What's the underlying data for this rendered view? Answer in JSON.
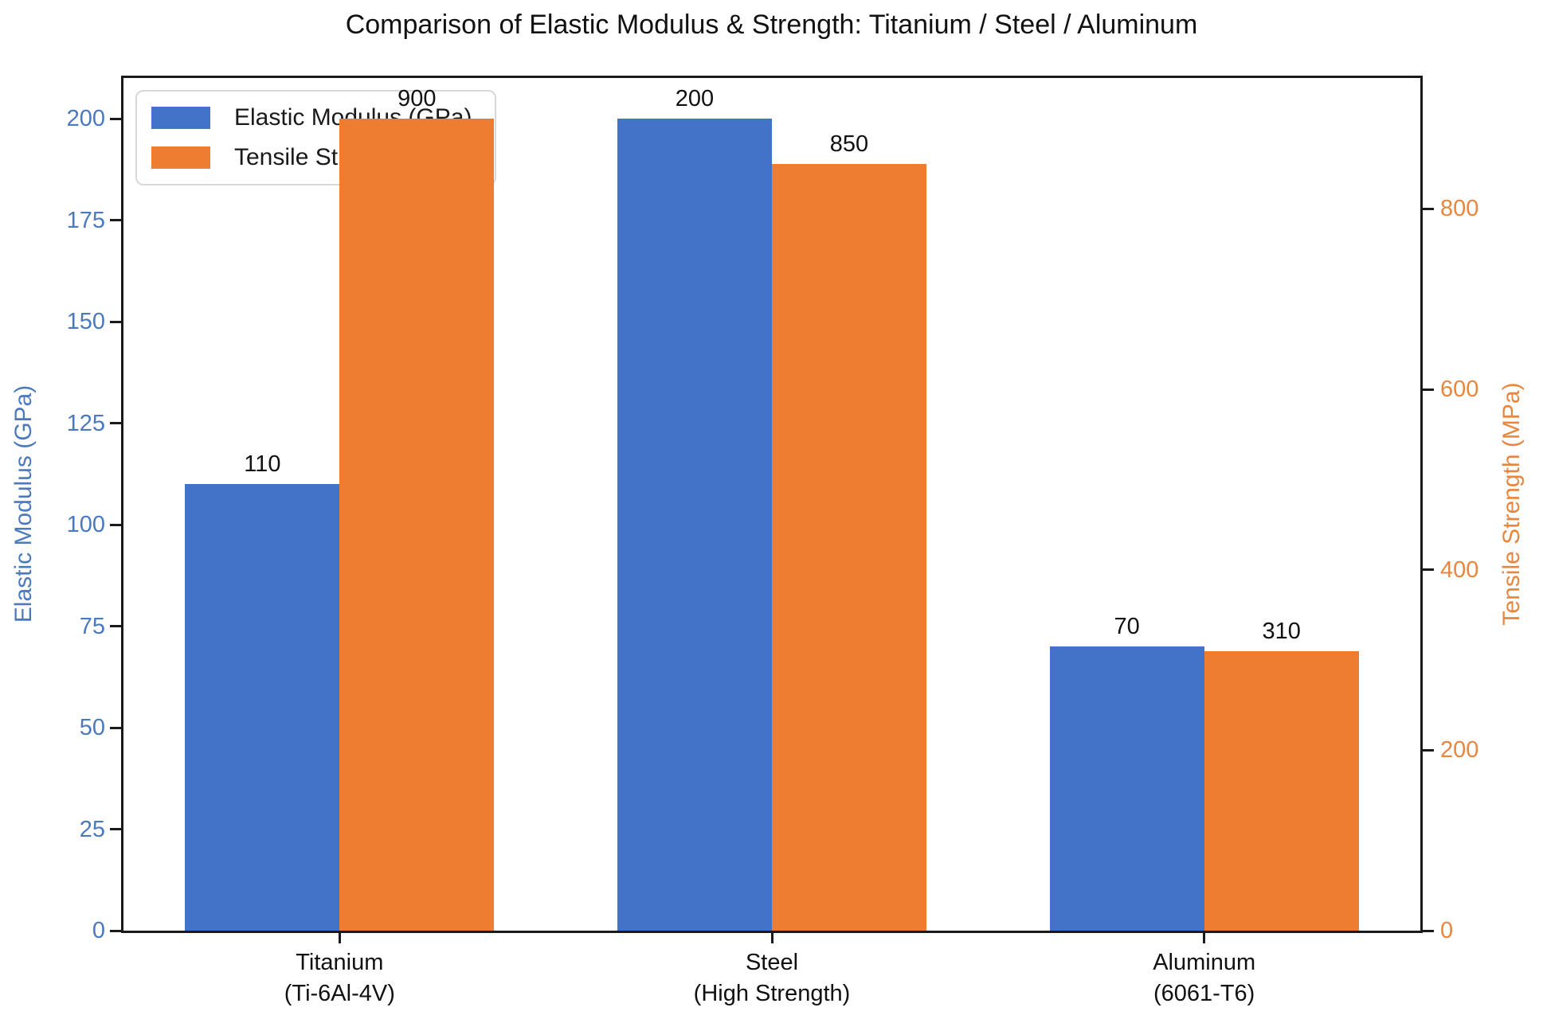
{
  "chart_data": {
    "type": "bar",
    "title": "Comparison of Elastic Modulus & Strength: Titanium / Steel / Aluminum",
    "categories": [
      {
        "name": "Titanium",
        "detail": "(Ti-6Al-4V)"
      },
      {
        "name": "Steel",
        "detail": "(High Strength)"
      },
      {
        "name": "Aluminum",
        "detail": "(6061-T6)"
      }
    ],
    "series": [
      {
        "key": "elastic-modulus",
        "name": "Elastic Modulus (GPa)",
        "axis": "left",
        "color": "#4173C9",
        "values": [
          110,
          200,
          70
        ]
      },
      {
        "key": "tensile-strength",
        "name": "Tensile Strength (MPa)",
        "axis": "right",
        "color": "#EE7D32",
        "values": [
          900,
          850,
          310
        ]
      }
    ],
    "bar_value_labels": [
      [
        110,
        200,
        70
      ],
      [
        900,
        850,
        310
      ]
    ],
    "left_axis": {
      "label": "Elastic Modulus (GPa)",
      "ticks": [
        0,
        25,
        50,
        75,
        100,
        125,
        150,
        175,
        200
      ],
      "range": [
        0,
        210
      ],
      "text_color": "#4B79BE"
    },
    "right_axis": {
      "label": "Tensile Strength (MPa)",
      "ticks": [
        0,
        200,
        400,
        600,
        800
      ],
      "range": [
        0,
        945
      ],
      "text_color": "#E8863E"
    },
    "legend_position": "upper-left",
    "grid": false,
    "spine_color": "#1a1a1a",
    "background": "#ffffff"
  }
}
